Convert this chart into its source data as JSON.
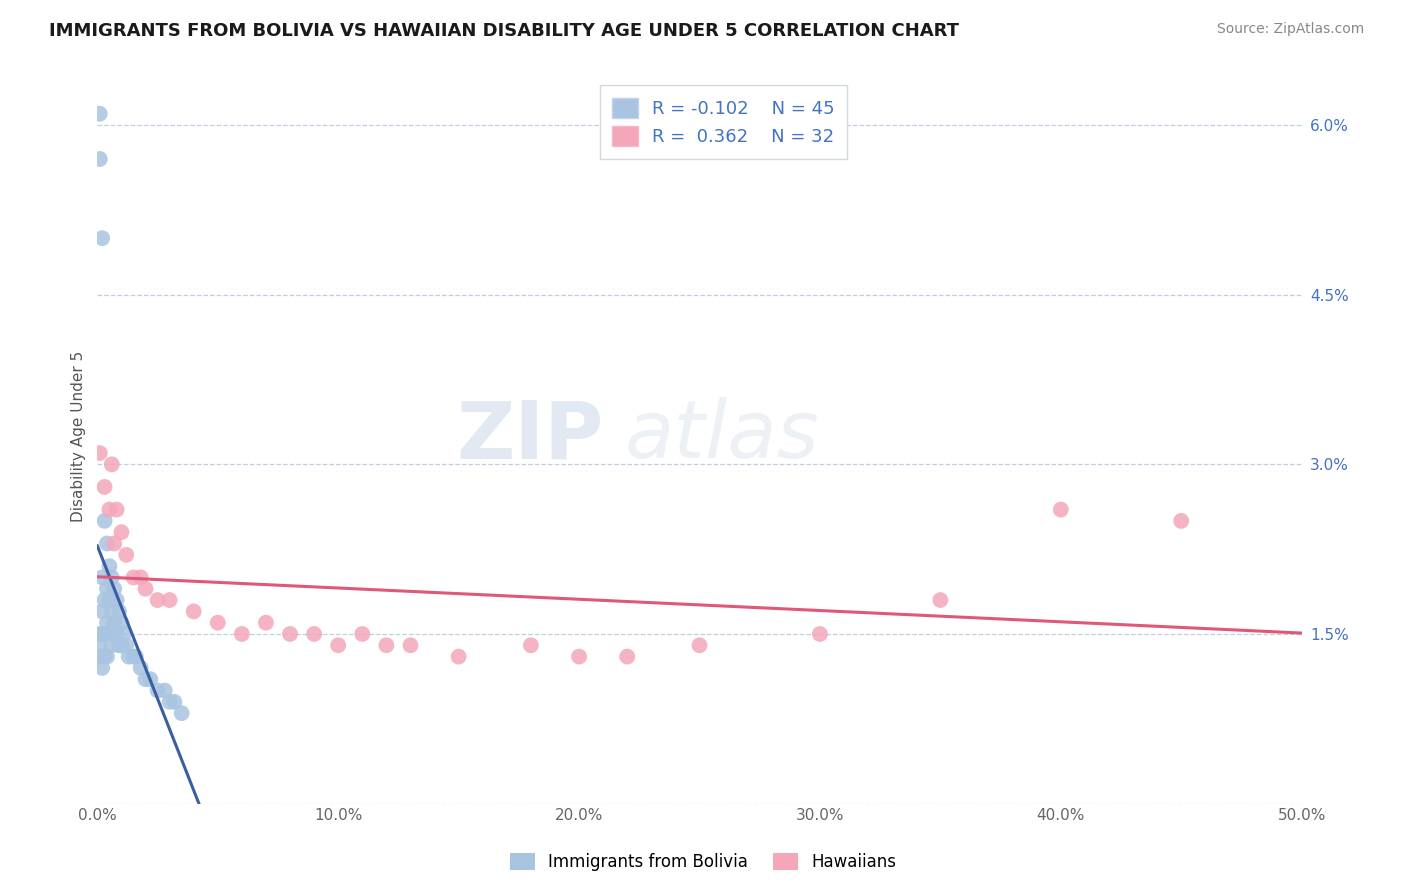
{
  "title": "IMMIGRANTS FROM BOLIVIA VS HAWAIIAN DISABILITY AGE UNDER 5 CORRELATION CHART",
  "source": "Source: ZipAtlas.com",
  "ylabel": "Disability Age Under 5",
  "xlim": [
    0.0,
    0.5
  ],
  "ylim": [
    0.0,
    0.065
  ],
  "ytick_vals": [
    0.0,
    0.015,
    0.03,
    0.045,
    0.06
  ],
  "ytick_labels": [
    "",
    "1.5%",
    "3.0%",
    "4.5%",
    "6.0%"
  ],
  "xtick_vals": [
    0.0,
    0.1,
    0.2,
    0.3,
    0.4,
    0.5
  ],
  "xtick_labels": [
    "0.0%",
    "10.0%",
    "20.0%",
    "30.0%",
    "40.0%",
    "50.0%"
  ],
  "r_bolivia": -0.102,
  "n_bolivia": 45,
  "r_hawaiian": 0.362,
  "n_hawaiian": 32,
  "watermark_zip": "ZIP",
  "watermark_atlas": "atlas",
  "bolivia_color": "#a8c4e0",
  "hawaiian_color": "#f4a7b9",
  "bolivia_line_color": "#3a5fa0",
  "hawaiian_line_color": "#e05878",
  "legend_label_bolivia": "Immigrants from Bolivia",
  "legend_label_hawaiian": "Hawaiians",
  "bolivia_points_x": [
    0.001,
    0.001,
    0.001,
    0.001,
    0.001,
    0.002,
    0.002,
    0.002,
    0.002,
    0.002,
    0.003,
    0.003,
    0.003,
    0.003,
    0.004,
    0.004,
    0.004,
    0.004,
    0.005,
    0.005,
    0.005,
    0.006,
    0.006,
    0.006,
    0.007,
    0.007,
    0.008,
    0.008,
    0.009,
    0.009,
    0.01,
    0.01,
    0.011,
    0.012,
    0.013,
    0.015,
    0.016,
    0.018,
    0.02,
    0.022,
    0.025,
    0.028,
    0.03,
    0.032,
    0.035
  ],
  "bolivia_points_y": [
    0.061,
    0.057,
    0.015,
    0.014,
    0.013,
    0.05,
    0.02,
    0.017,
    0.015,
    0.012,
    0.025,
    0.018,
    0.015,
    0.013,
    0.023,
    0.019,
    0.016,
    0.013,
    0.021,
    0.018,
    0.015,
    0.02,
    0.017,
    0.014,
    0.019,
    0.016,
    0.018,
    0.015,
    0.017,
    0.014,
    0.016,
    0.014,
    0.015,
    0.014,
    0.013,
    0.013,
    0.013,
    0.012,
    0.011,
    0.011,
    0.01,
    0.01,
    0.009,
    0.009,
    0.008
  ],
  "hawaiian_points_x": [
    0.001,
    0.003,
    0.005,
    0.006,
    0.007,
    0.008,
    0.01,
    0.012,
    0.015,
    0.018,
    0.02,
    0.025,
    0.03,
    0.04,
    0.05,
    0.06,
    0.07,
    0.08,
    0.1,
    0.12,
    0.09,
    0.11,
    0.13,
    0.15,
    0.18,
    0.2,
    0.22,
    0.25,
    0.3,
    0.35,
    0.4,
    0.45
  ],
  "hawaiian_points_y": [
    0.031,
    0.028,
    0.026,
    0.03,
    0.023,
    0.026,
    0.024,
    0.022,
    0.02,
    0.02,
    0.019,
    0.018,
    0.018,
    0.017,
    0.016,
    0.015,
    0.016,
    0.015,
    0.014,
    0.014,
    0.015,
    0.015,
    0.014,
    0.013,
    0.014,
    0.013,
    0.013,
    0.014,
    0.015,
    0.018,
    0.026,
    0.025
  ]
}
